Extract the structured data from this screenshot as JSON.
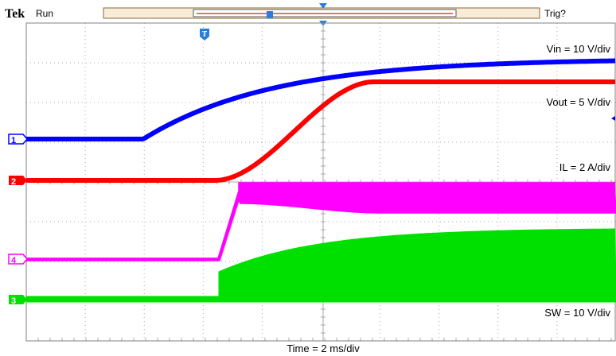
{
  "status_bar": {
    "brand": "Tek",
    "run_state": "Run",
    "trigger_state": "Trig?",
    "trigger_marker": "T"
  },
  "channels": [
    {
      "id": "1",
      "label": "Vin = 10 V/div",
      "color": "#0000ff"
    },
    {
      "id": "2",
      "label": "Vout = 5 V/div",
      "color": "#ff0000"
    },
    {
      "id": "4",
      "label": "IL = 2 A/div",
      "color": "#ff00ff"
    },
    {
      "id": "3",
      "label": "SW = 10 V/div",
      "color": "#00e000"
    }
  ],
  "timebase": {
    "label": "Time = 2 ms/div"
  },
  "colors": {
    "grid": "#a8a8a8",
    "trigger": "#2a7fd4",
    "frame": "#808080"
  }
}
